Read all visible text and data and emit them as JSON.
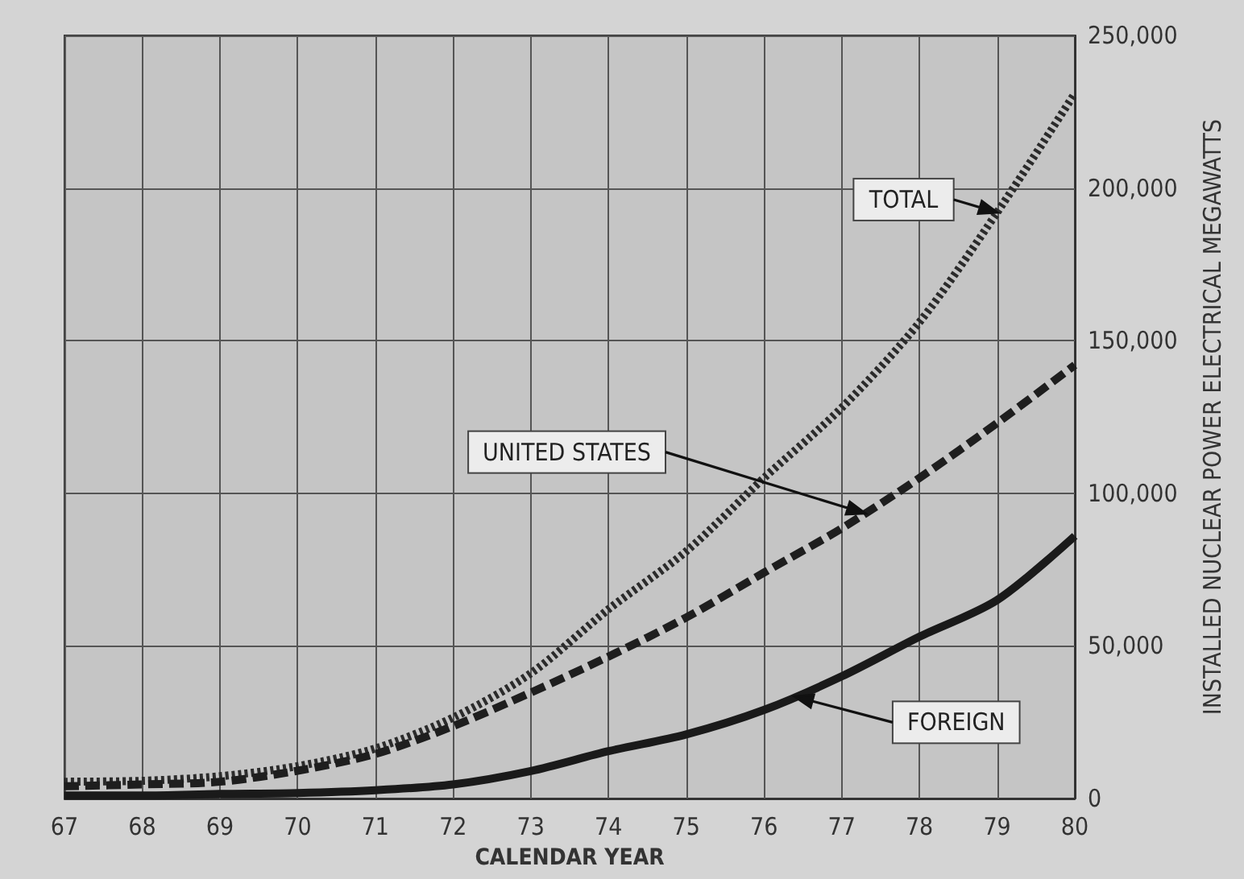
{
  "chart_data": {
    "type": "line",
    "xlabel": "CALENDAR YEAR",
    "ylabel": "INSTALLED NUCLEAR POWER ELECTRICAL MEGAWATTS",
    "x": [
      67,
      68,
      69,
      70,
      71,
      72,
      73,
      74,
      75,
      76,
      77,
      78,
      79,
      80
    ],
    "series": [
      {
        "color": "#2b2b2b",
        "line_style": "dotted",
        "values": [
          5500,
          5800,
          7300,
          10600,
          16400,
          26500,
          41000,
          62000,
          81000,
          105000,
          128000,
          156000,
          192000,
          231000
        ]
      },
      {
        "color": "#1e1e1e",
        "line_style": "dashed",
        "values": [
          4000,
          4600,
          5500,
          9100,
          14600,
          23700,
          34700,
          46500,
          59300,
          74000,
          88500,
          105000,
          123000,
          142000
        ]
      },
      {
        "color": "#1a1a1a",
        "line_style": "solid",
        "values": [
          1000,
          1000,
          1500,
          1800,
          2700,
          4600,
          9000,
          15500,
          21000,
          29000,
          40000,
          53000,
          65000,
          86000
        ]
      }
    ],
    "xlim": [
      67,
      80
    ],
    "xticks": [
      67,
      68,
      69,
      70,
      71,
      72,
      73,
      74,
      75,
      76,
      77,
      78,
      79,
      80
    ],
    "ylim": [
      0,
      250000
    ],
    "yticks": [
      {
        "value": 0,
        "label": "0"
      },
      {
        "value": 50000,
        "label": "50,000"
      },
      {
        "value": 100000,
        "label": "100,000"
      },
      {
        "value": 150000,
        "label": "150,000"
      },
      {
        "value": 200000,
        "label": "200,000"
      },
      {
        "value": 250000,
        "label": "250,000"
      }
    ],
    "grid": true,
    "marker": "none",
    "annotations": [
      "TOTAL",
      "UNITED STATES",
      "FOREIGN"
    ]
  }
}
